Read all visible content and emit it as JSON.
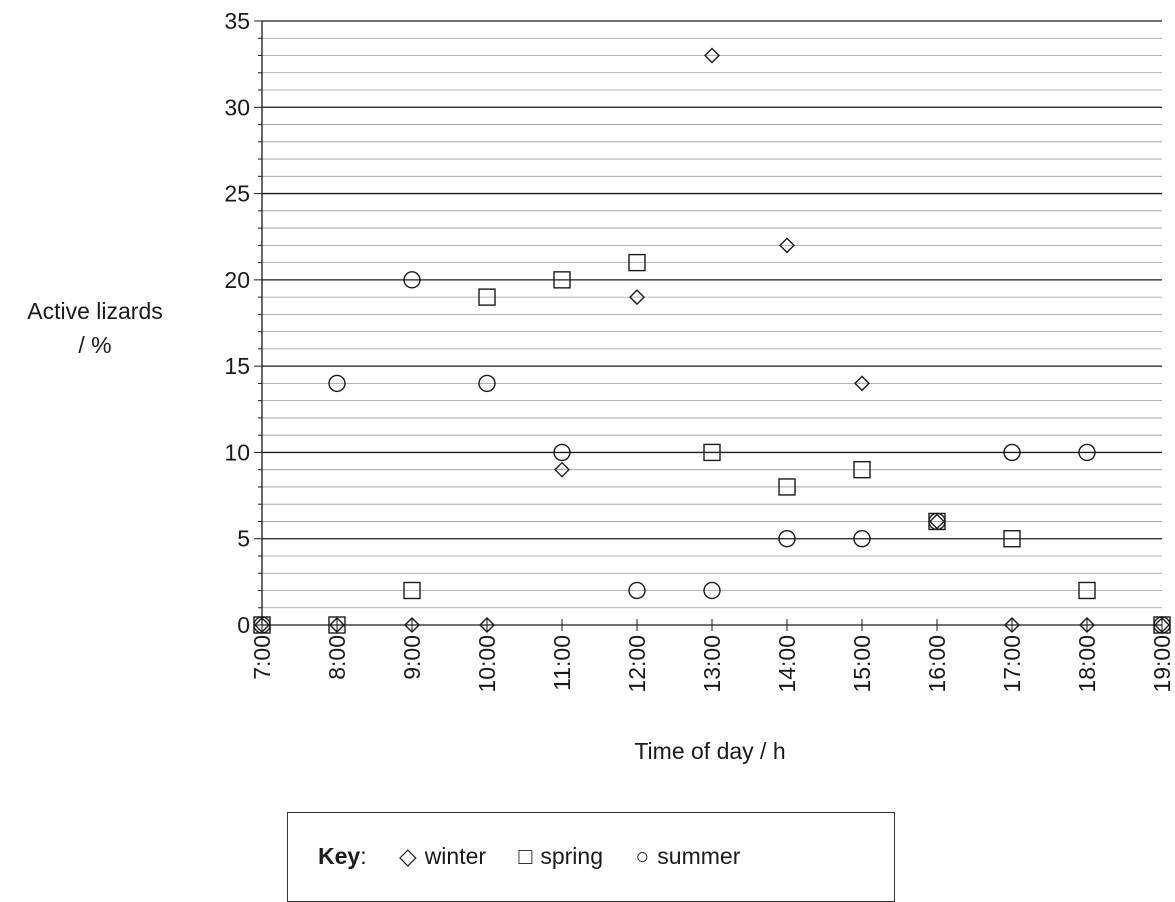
{
  "chart_data": {
    "type": "scatter",
    "title": "",
    "xlabel": "Time of day / h",
    "ylabel": [
      "Active lizards",
      "/ %"
    ],
    "x_categories": [
      "7:00",
      "8:00",
      "9:00",
      "10:00",
      "11:00",
      "12:00",
      "13:00",
      "14:00",
      "15:00",
      "16:00",
      "17:00",
      "18:00",
      "19:00"
    ],
    "y_ticks": [
      0,
      5,
      10,
      15,
      20,
      25,
      30,
      35
    ],
    "ylim": [
      0,
      35
    ],
    "grid": true,
    "legend": {
      "title": "Key",
      "separator": ":",
      "position": "bottom"
    },
    "series": [
      {
        "name": "winter",
        "marker": "diamond",
        "values": [
          0,
          0,
          0,
          0,
          9,
          19,
          33,
          22,
          14,
          6,
          0,
          0,
          0
        ]
      },
      {
        "name": "spring",
        "marker": "square",
        "values": [
          0,
          0,
          2,
          19,
          20,
          21,
          10,
          8,
          9,
          6,
          5,
          2,
          0
        ]
      },
      {
        "name": "summer",
        "marker": "circle",
        "values": [
          0,
          14,
          20,
          14,
          10,
          2,
          2,
          5,
          5,
          6,
          10,
          10,
          0
        ]
      }
    ]
  },
  "legend_symbols": {
    "winter": "◇",
    "spring": "□",
    "summer": "○"
  }
}
